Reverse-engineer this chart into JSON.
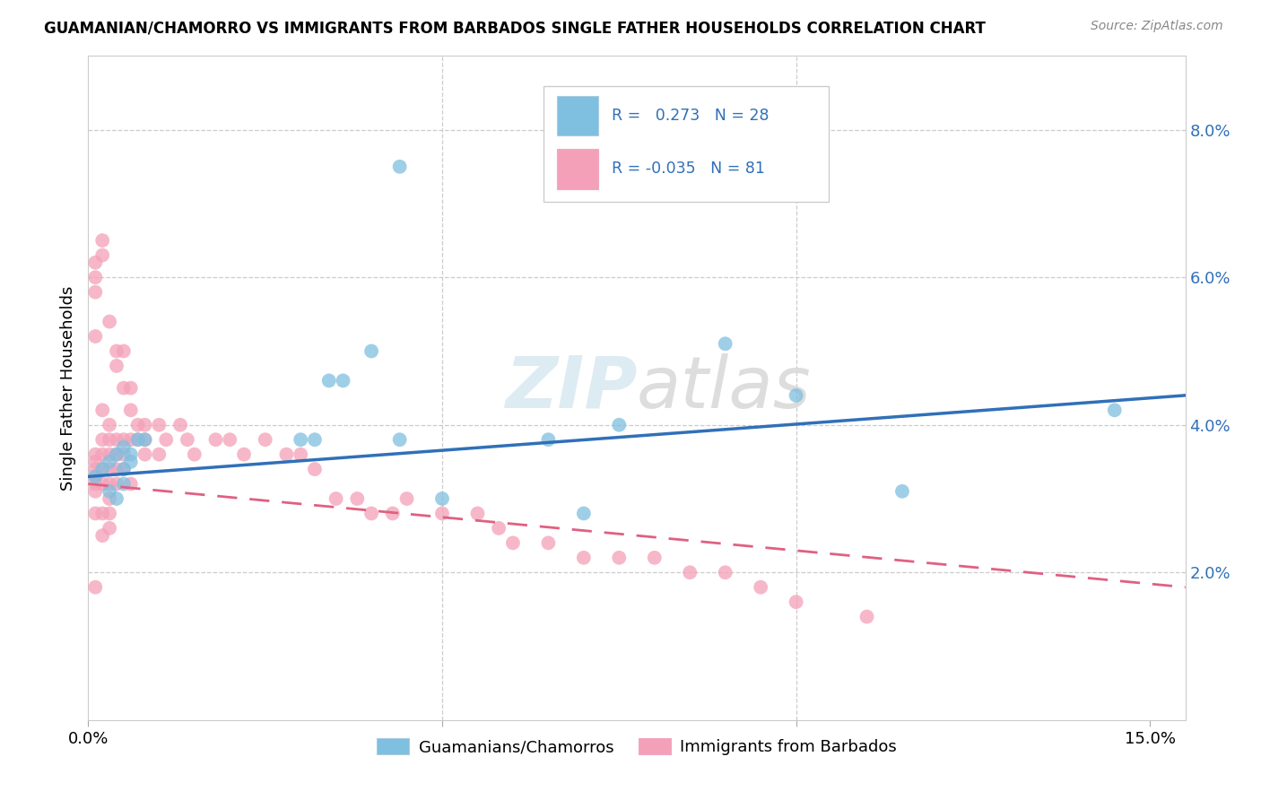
{
  "title": "GUAMANIAN/CHAMORRO VS IMMIGRANTS FROM BARBADOS SINGLE FATHER HOUSEHOLDS CORRELATION CHART",
  "source": "Source: ZipAtlas.com",
  "ylabel": "Single Father Households",
  "xlim": [
    0.0,
    0.155
  ],
  "ylim": [
    0.0,
    0.09
  ],
  "xticks": [
    0.0,
    0.05,
    0.1,
    0.15
  ],
  "xticklabels": [
    "0.0%",
    "",
    "",
    "15.0%"
  ],
  "yticks_right": [
    0.02,
    0.04,
    0.06,
    0.08
  ],
  "ytick_labels_right": [
    "2.0%",
    "4.0%",
    "6.0%",
    "8.0%"
  ],
  "blue_color": "#7fbfdf",
  "pink_color": "#f4a0b8",
  "blue_line_color": "#3070b8",
  "pink_line_color": "#e06080",
  "legend_R_blue": "0.273",
  "legend_N_blue": "28",
  "legend_R_pink": "-0.035",
  "legend_N_pink": "81",
  "watermark": "ZIPatlas",
  "blue_line_x": [
    0.0,
    0.155
  ],
  "blue_line_y": [
    0.033,
    0.044
  ],
  "pink_line_x": [
    0.0,
    0.155
  ],
  "pink_line_y": [
    0.032,
    0.018
  ],
  "guamanians_x": [
    0.001,
    0.002,
    0.003,
    0.003,
    0.004,
    0.004,
    0.005,
    0.005,
    0.005,
    0.006,
    0.006,
    0.007,
    0.008,
    0.03,
    0.032,
    0.034,
    0.036,
    0.04,
    0.044,
    0.044,
    0.05,
    0.065,
    0.07,
    0.075,
    0.09,
    0.1,
    0.115,
    0.145
  ],
  "guamanians_y": [
    0.033,
    0.034,
    0.031,
    0.035,
    0.03,
    0.036,
    0.032,
    0.034,
    0.037,
    0.036,
    0.035,
    0.038,
    0.038,
    0.038,
    0.038,
    0.046,
    0.046,
    0.05,
    0.038,
    0.075,
    0.03,
    0.038,
    0.028,
    0.04,
    0.051,
    0.044,
    0.031,
    0.042
  ],
  "barbados_x": [
    0.001,
    0.001,
    0.001,
    0.001,
    0.001,
    0.001,
    0.001,
    0.001,
    0.001,
    0.001,
    0.001,
    0.001,
    0.002,
    0.002,
    0.002,
    0.002,
    0.002,
    0.002,
    0.002,
    0.002,
    0.002,
    0.003,
    0.003,
    0.003,
    0.003,
    0.003,
    0.003,
    0.003,
    0.003,
    0.003,
    0.004,
    0.004,
    0.004,
    0.004,
    0.004,
    0.004,
    0.005,
    0.005,
    0.005,
    0.005,
    0.005,
    0.006,
    0.006,
    0.006,
    0.006,
    0.007,
    0.007,
    0.008,
    0.008,
    0.008,
    0.01,
    0.01,
    0.011,
    0.013,
    0.014,
    0.015,
    0.018,
    0.02,
    0.022,
    0.025,
    0.028,
    0.03,
    0.032,
    0.035,
    0.038,
    0.04,
    0.043,
    0.045,
    0.05,
    0.055,
    0.058,
    0.06,
    0.065,
    0.07,
    0.075,
    0.08,
    0.085,
    0.09,
    0.095,
    0.1,
    0.11
  ],
  "barbados_y": [
    0.06,
    0.062,
    0.058,
    0.052,
    0.036,
    0.035,
    0.034,
    0.033,
    0.032,
    0.031,
    0.028,
    0.018,
    0.065,
    0.063,
    0.042,
    0.038,
    0.036,
    0.034,
    0.032,
    0.028,
    0.025,
    0.054,
    0.04,
    0.038,
    0.036,
    0.034,
    0.032,
    0.03,
    0.028,
    0.026,
    0.05,
    0.048,
    0.038,
    0.036,
    0.034,
    0.032,
    0.05,
    0.045,
    0.038,
    0.036,
    0.034,
    0.045,
    0.042,
    0.038,
    0.032,
    0.04,
    0.038,
    0.04,
    0.038,
    0.036,
    0.04,
    0.036,
    0.038,
    0.04,
    0.038,
    0.036,
    0.038,
    0.038,
    0.036,
    0.038,
    0.036,
    0.036,
    0.034,
    0.03,
    0.03,
    0.028,
    0.028,
    0.03,
    0.028,
    0.028,
    0.026,
    0.024,
    0.024,
    0.022,
    0.022,
    0.022,
    0.02,
    0.02,
    0.018,
    0.016,
    0.014
  ]
}
